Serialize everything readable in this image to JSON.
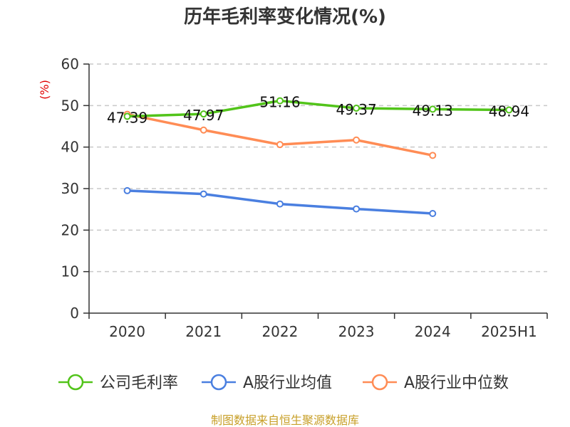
{
  "chart_data": {
    "type": "line",
    "title": "历年毛利率变化情况(%)",
    "ylabel": "(%)",
    "xlabel": "",
    "categories": [
      "2020",
      "2021",
      "2022",
      "2023",
      "2024",
      "2025H1"
    ],
    "ylim": [
      0,
      60
    ],
    "yticks": [
      "0",
      "10",
      "20",
      "30",
      "40",
      "50",
      "60"
    ],
    "grid": true,
    "legend_position": "bottom",
    "series": [
      {
        "name": "公司毛利率",
        "color": "#52c41a",
        "values": [
          47.39,
          47.97,
          51.16,
          49.37,
          49.13,
          48.94
        ],
        "labels": [
          "47.39",
          "47.97",
          "51.16",
          "49.37",
          "49.13",
          "48.94"
        ]
      },
      {
        "name": "A股行业均值",
        "color": "#4a7fe0",
        "values": [
          29.5,
          28.7,
          26.3,
          25.1,
          24.0,
          null
        ]
      },
      {
        "name": "A股行业中位数",
        "color": "#ff8c55",
        "values": [
          47.9,
          44.1,
          40.6,
          41.7,
          38.0,
          null
        ]
      }
    ]
  },
  "footer": "制图数据来自恒生聚源数据库"
}
